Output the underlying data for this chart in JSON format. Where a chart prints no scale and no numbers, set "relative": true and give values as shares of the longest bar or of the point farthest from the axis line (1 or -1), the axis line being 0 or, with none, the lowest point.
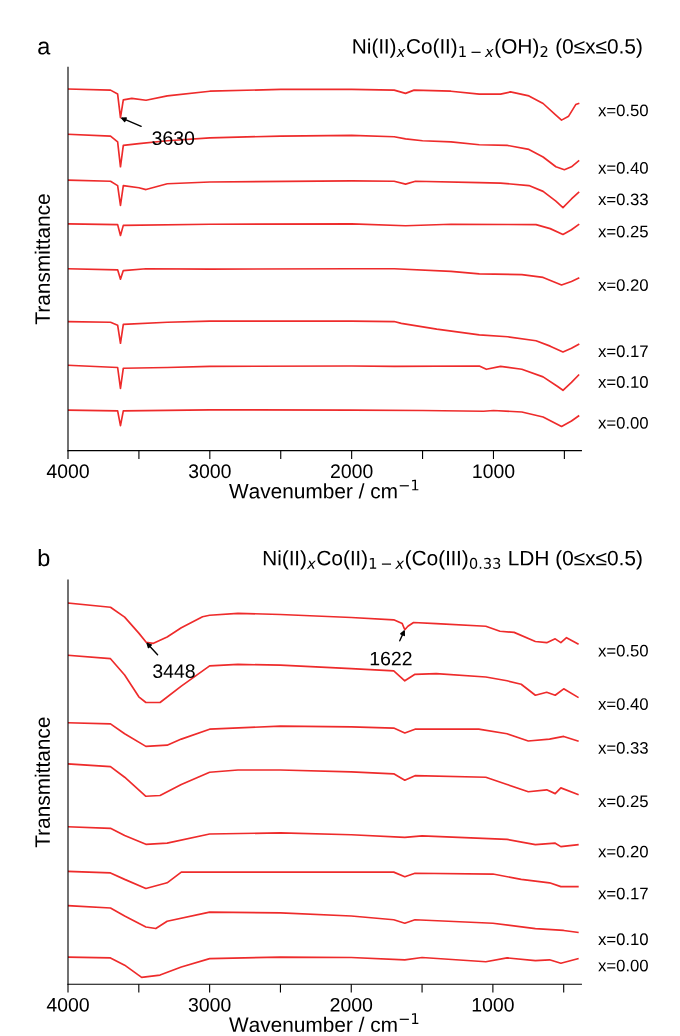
{
  "chart_data": [
    {
      "type": "line",
      "title": "a",
      "subtitle": "Ni(II)$_{x}$Co(II)$_{1−x}$(OH)$_{2}$ (0≤x≤0.5)",
      "xlabel": "Wavenumber / cm$^{−1}$",
      "ylabel": "Transmittance",
      "relative": true,
      "tick_labels": "x",
      "grid": false,
      "legend": false,
      "marker": "none",
      "line_style": "solid",
      "xlim": [
        4000,
        380
      ],
      "xticks": [
        4000,
        {
          "value": 3500,
          "label": null
        },
        3000,
        {
          "value": 2500,
          "label": null
        },
        2000,
        {
          "value": 1500,
          "label": null
        },
        1000,
        {
          "value": 500,
          "label": null
        }
      ],
      "annotations": [
        {
          "text": "3630",
          "x": 3630,
          "y": 0.921
        }
      ],
      "series": [
        {
          "name": "x=0.50",
          "color": "#ee2b2b",
          "x": [
            4000,
            3700,
            3650,
            3630,
            3610,
            3550,
            3450,
            3300,
            3000,
            2500,
            2000,
            1700,
            1620,
            1560,
            1300,
            1100,
            950,
            880,
            750,
            650,
            560,
            520,
            470,
            420,
            400
          ],
          "values": [
            1.0,
            0.997,
            0.986,
            0.921,
            0.97,
            0.974,
            0.969,
            0.981,
            0.994,
            0.999,
            0.999,
            0.997,
            0.988,
            0.997,
            0.994,
            0.986,
            0.986,
            0.992,
            0.981,
            0.96,
            0.928,
            0.914,
            0.925,
            0.957,
            0.96
          ]
        },
        {
          "name": "x=0.40",
          "color": "#ee2b2b",
          "x": [
            4000,
            3700,
            3650,
            3630,
            3610,
            3500,
            3300,
            3000,
            2500,
            2000,
            1700,
            1620,
            1500,
            1300,
            1100,
            900,
            750,
            650,
            560,
            500,
            450,
            400
          ],
          "values": [
            0.875,
            0.87,
            0.854,
            0.785,
            0.844,
            0.849,
            0.857,
            0.865,
            0.87,
            0.872,
            0.868,
            0.862,
            0.857,
            0.854,
            0.846,
            0.844,
            0.833,
            0.812,
            0.785,
            0.777,
            0.785,
            0.801
          ]
        },
        {
          "name": "x=0.33",
          "color": "#ee2b2b",
          "x": [
            4000,
            3700,
            3650,
            3630,
            3610,
            3500,
            3450,
            3300,
            3000,
            2000,
            1700,
            1620,
            1550,
            1100,
            950,
            750,
            650,
            560,
            510,
            450,
            400
          ],
          "values": [
            0.748,
            0.745,
            0.733,
            0.678,
            0.733,
            0.727,
            0.722,
            0.738,
            0.743,
            0.746,
            0.745,
            0.737,
            0.745,
            0.741,
            0.74,
            0.733,
            0.717,
            0.69,
            0.672,
            0.696,
            0.714
          ]
        },
        {
          "name": "x=0.25",
          "color": "#ee2b2b",
          "x": [
            4000,
            3650,
            3630,
            3610,
            3000,
            2000,
            1620,
            1300,
            700,
            600,
            510,
            450,
            400
          ],
          "values": [
            0.627,
            0.625,
            0.595,
            0.623,
            0.626,
            0.627,
            0.622,
            0.626,
            0.625,
            0.614,
            0.598,
            0.611,
            0.625
          ]
        },
        {
          "name": "x=0.20",
          "color": "#ee2b2b",
          "x": [
            4000,
            3650,
            3630,
            3610,
            3450,
            3000,
            2000,
            1700,
            1300,
            1100,
            800,
            650,
            520,
            450,
            400
          ],
          "values": [
            0.503,
            0.5,
            0.474,
            0.498,
            0.503,
            0.502,
            0.503,
            0.503,
            0.496,
            0.489,
            0.487,
            0.479,
            0.458,
            0.468,
            0.477
          ]
        },
        {
          "name": "x=0.17",
          "color": "#ee2b2b",
          "x": [
            4000,
            3700,
            3650,
            3630,
            3610,
            3300,
            3000,
            2000,
            1700,
            1650,
            1400,
            1100,
            900,
            700,
            600,
            510,
            450,
            400
          ],
          "values": [
            0.357,
            0.355,
            0.347,
            0.297,
            0.349,
            0.355,
            0.358,
            0.358,
            0.357,
            0.352,
            0.336,
            0.32,
            0.315,
            0.304,
            0.289,
            0.273,
            0.283,
            0.294
          ]
        },
        {
          "name": "x=0.10",
          "color": "#ee2b2b",
          "x": [
            4000,
            3650,
            3630,
            3610,
            3300,
            3000,
            2000,
            1700,
            1100,
            1050,
            950,
            800,
            650,
            550,
            510,
            450,
            400
          ],
          "values": [
            0.236,
            0.23,
            0.172,
            0.228,
            0.23,
            0.233,
            0.234,
            0.233,
            0.234,
            0.225,
            0.233,
            0.225,
            0.204,
            0.178,
            0.167,
            0.189,
            0.209
          ]
        },
        {
          "name": "x=0.00",
          "color": "#ee2b2b",
          "x": [
            4000,
            3650,
            3630,
            3610,
            3000,
            2000,
            1500,
            1070,
            1000,
            800,
            650,
            520,
            450,
            400
          ],
          "values": [
            0.112,
            0.11,
            0.069,
            0.11,
            0.113,
            0.112,
            0.111,
            0.109,
            0.111,
            0.107,
            0.093,
            0.067,
            0.082,
            0.096
          ]
        }
      ]
    },
    {
      "type": "line",
      "title": "b",
      "subtitle": "Ni(II)$_{x}$Co(II)$_{1−x}$(Co(III)$_{0.33}$ LDH (0≤x≤0.5)",
      "xlabel": "Wavenumber / cm$^{−1}$",
      "ylabel": "Transmittance",
      "relative": true,
      "tick_labels": "x",
      "grid": false,
      "legend": false,
      "marker": "none",
      "line_style": "solid",
      "xlim": [
        4000,
        375
      ],
      "xticks": [
        4000,
        {
          "value": 3500,
          "label": null
        },
        3000,
        {
          "value": 2500,
          "label": null
        },
        2000,
        {
          "value": 1500,
          "label": null
        },
        1000,
        {
          "value": 500,
          "label": null
        }
      ],
      "annotations": [
        {
          "text": "3448",
          "x": 3448,
          "y": 0.897
        },
        {
          "text": "1622",
          "x": 1622,
          "y": 0.93
        }
      ],
      "series": [
        {
          "name": "x=0.50",
          "color": "#ee2b2b",
          "x": [
            4000,
            3700,
            3600,
            3500,
            3448,
            3400,
            3300,
            3200,
            3050,
            3000,
            2800,
            2500,
            2000,
            1700,
            1640,
            1622,
            1600,
            1560,
            1400,
            1050,
            950,
            850,
            700,
            620,
            560,
            520,
            480,
            400
          ],
          "values": [
            1.0,
            0.989,
            0.963,
            0.921,
            0.897,
            0.894,
            0.911,
            0.935,
            0.964,
            0.968,
            0.973,
            0.97,
            0.962,
            0.956,
            0.946,
            0.93,
            0.939,
            0.949,
            0.946,
            0.939,
            0.926,
            0.923,
            0.899,
            0.896,
            0.906,
            0.896,
            0.909,
            0.893
          ]
        },
        {
          "name": "x=0.40",
          "color": "#ee2b2b",
          "x": [
            4000,
            3700,
            3600,
            3500,
            3450,
            3350,
            3200,
            3000,
            2800,
            2500,
            2000,
            1700,
            1622,
            1550,
            1400,
            1050,
            900,
            800,
            700,
            620,
            560,
            500,
            400
          ],
          "values": [
            0.863,
            0.854,
            0.811,
            0.754,
            0.739,
            0.739,
            0.782,
            0.835,
            0.839,
            0.837,
            0.828,
            0.822,
            0.796,
            0.813,
            0.815,
            0.806,
            0.796,
            0.787,
            0.758,
            0.766,
            0.758,
            0.775,
            0.753
          ]
        },
        {
          "name": "x=0.33",
          "color": "#ee2b2b",
          "x": [
            4000,
            3700,
            3600,
            3450,
            3300,
            3200,
            3000,
            2500,
            2000,
            1700,
            1622,
            1550,
            1100,
            900,
            750,
            600,
            500,
            400
          ],
          "values": [
            0.686,
            0.683,
            0.657,
            0.624,
            0.627,
            0.643,
            0.669,
            0.677,
            0.675,
            0.672,
            0.659,
            0.669,
            0.669,
            0.657,
            0.638,
            0.643,
            0.65,
            0.638
          ]
        },
        {
          "name": "x=0.25",
          "color": "#ee2b2b",
          "x": [
            4000,
            3700,
            3600,
            3450,
            3350,
            3200,
            3000,
            2800,
            2500,
            2000,
            1700,
            1622,
            1550,
            1050,
            900,
            750,
            620,
            560,
            520,
            400
          ],
          "values": [
            0.578,
            0.571,
            0.543,
            0.493,
            0.495,
            0.524,
            0.556,
            0.562,
            0.562,
            0.557,
            0.552,
            0.535,
            0.547,
            0.543,
            0.524,
            0.505,
            0.51,
            0.5,
            0.515,
            0.498
          ]
        },
        {
          "name": "x=0.20",
          "color": "#ee2b2b",
          "x": [
            4000,
            3700,
            3600,
            3450,
            3300,
            3000,
            2500,
            2000,
            1622,
            1500,
            900,
            700,
            560,
            520,
            400
          ],
          "values": [
            0.413,
            0.409,
            0.39,
            0.367,
            0.37,
            0.394,
            0.397,
            0.392,
            0.385,
            0.389,
            0.38,
            0.366,
            0.37,
            0.361,
            0.366
          ]
        },
        {
          "name": "x=0.17",
          "color": "#ee2b2b",
          "x": [
            4000,
            3700,
            3600,
            3450,
            3300,
            3200,
            2500,
            2000,
            1700,
            1622,
            1550,
            1000,
            800,
            600,
            520,
            400
          ],
          "values": [
            0.296,
            0.292,
            0.275,
            0.251,
            0.266,
            0.294,
            0.294,
            0.294,
            0.294,
            0.282,
            0.291,
            0.289,
            0.275,
            0.266,
            0.256,
            0.256
          ]
        },
        {
          "name": "x=0.10",
          "color": "#ee2b2b",
          "x": [
            4000,
            3700,
            3600,
            3450,
            3380,
            3300,
            3000,
            2500,
            2000,
            1700,
            1622,
            1550,
            1000,
            700,
            500,
            400
          ],
          "values": [
            0.206,
            0.2,
            0.179,
            0.15,
            0.146,
            0.165,
            0.189,
            0.187,
            0.179,
            0.169,
            0.16,
            0.169,
            0.16,
            0.146,
            0.141,
            0.136
          ]
        },
        {
          "name": "x=0.00",
          "color": "#ee2b2b",
          "x": [
            4000,
            3700,
            3600,
            3480,
            3350,
            3200,
            3000,
            2500,
            2000,
            1622,
            1500,
            1050,
            900,
            700,
            600,
            520,
            400
          ],
          "values": [
            0.071,
            0.069,
            0.05,
            0.018,
            0.024,
            0.045,
            0.067,
            0.071,
            0.07,
            0.064,
            0.07,
            0.059,
            0.069,
            0.062,
            0.064,
            0.055,
            0.067
          ]
        }
      ]
    }
  ]
}
